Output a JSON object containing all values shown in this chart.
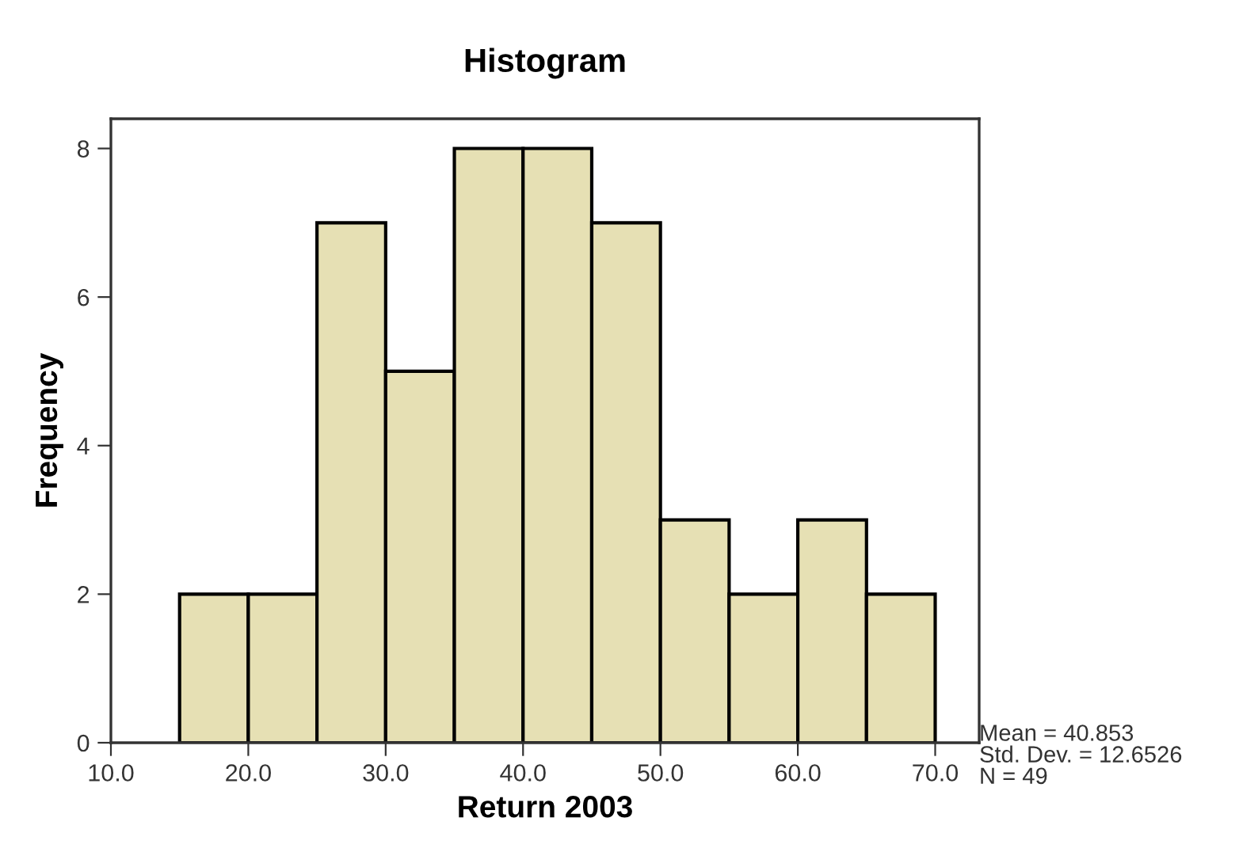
{
  "chart_data": {
    "type": "histogram",
    "title": "Histogram",
    "xlabel": "Return 2003",
    "ylabel": "Frequency",
    "bins": [
      15,
      20,
      25,
      30,
      35,
      40,
      45,
      50,
      55,
      60,
      65,
      70
    ],
    "values": [
      2,
      2,
      7,
      5,
      8,
      8,
      7,
      3,
      2,
      3,
      2
    ],
    "color": "#e6e0b4",
    "xlim": [
      10,
      73.2
    ],
    "xticks": [
      {
        "value": 10,
        "label": "10.0"
      },
      {
        "value": 20,
        "label": "20.0"
      },
      {
        "value": 30,
        "label": "30.0"
      },
      {
        "value": 40,
        "label": "40.0"
      },
      {
        "value": 50,
        "label": "50.0"
      },
      {
        "value": 60,
        "label": "60.0"
      },
      {
        "value": 70,
        "label": "70.0"
      }
    ],
    "ylim": [
      0,
      8.4
    ],
    "yticks": [
      0,
      2,
      4,
      6,
      8
    ],
    "annotations": [
      "Mean = 40.853\nStd. Dev. = 12.6526\nN = 49"
    ],
    "grid": false
  }
}
